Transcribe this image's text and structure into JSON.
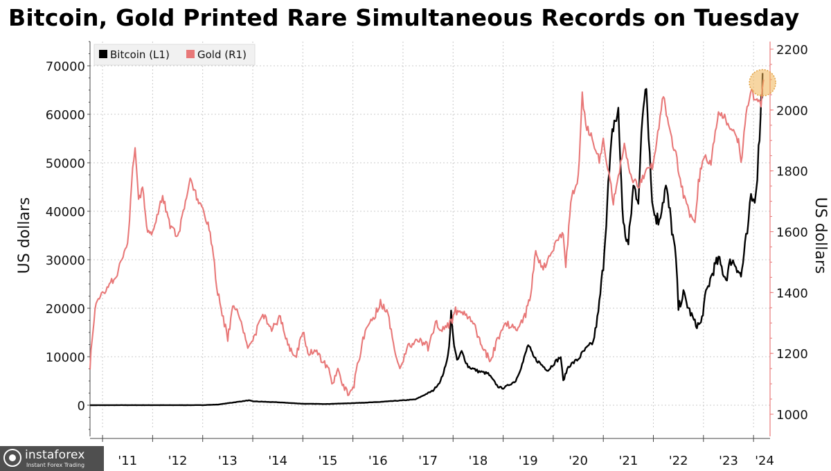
{
  "chart_data": {
    "type": "line",
    "title": "Bitcoin, Gold Printed Rare Simultaneous Records on Tuesday",
    "ylabel_left": "US dollars",
    "ylabel_right": "US dollars",
    "xlabel": "",
    "x_ticks": [
      "'11",
      "'12",
      "'13",
      "'14",
      "'15",
      "'16",
      "'17",
      "'18",
      "'19",
      "'20",
      "'21",
      "'22",
      "'23",
      "'24"
    ],
    "x_range": [
      2010.75,
      2024.33
    ],
    "y_left": {
      "min": -5000,
      "max": 75000,
      "ticks": [
        0,
        10000,
        20000,
        30000,
        40000,
        50000,
        60000,
        70000
      ]
    },
    "y_right": {
      "min": 950,
      "max": 2225,
      "ticks": [
        1000,
        1200,
        1400,
        1600,
        1800,
        2000,
        2200
      ]
    },
    "grid": true,
    "legend_position": "top-left",
    "series": [
      {
        "name": "Bitcoin (L1)",
        "axis": "left",
        "color": "#000000",
        "points": [
          [
            2010.75,
            0
          ],
          [
            2011.5,
            15
          ],
          [
            2012.5,
            12
          ],
          [
            2013.0,
            20
          ],
          [
            2013.3,
            130
          ],
          [
            2013.92,
            1000
          ],
          [
            2014.0,
            800
          ],
          [
            2014.5,
            600
          ],
          [
            2015.0,
            300
          ],
          [
            2015.5,
            250
          ],
          [
            2016.0,
            430
          ],
          [
            2016.5,
            650
          ],
          [
            2017.0,
            1000
          ],
          [
            2017.25,
            1200
          ],
          [
            2017.5,
            2500
          ],
          [
            2017.6,
            3000
          ],
          [
            2017.75,
            5000
          ],
          [
            2017.85,
            8000
          ],
          [
            2017.92,
            12000
          ],
          [
            2017.96,
            19000
          ],
          [
            2018.0,
            14000
          ],
          [
            2018.08,
            9000
          ],
          [
            2018.17,
            11000
          ],
          [
            2018.3,
            8000
          ],
          [
            2018.5,
            7000
          ],
          [
            2018.7,
            6500
          ],
          [
            2018.9,
            3800
          ],
          [
            2019.0,
            3500
          ],
          [
            2019.25,
            5000
          ],
          [
            2019.4,
            9000
          ],
          [
            2019.5,
            12500
          ],
          [
            2019.6,
            10000
          ],
          [
            2019.8,
            8000
          ],
          [
            2019.9,
            7200
          ],
          [
            2020.0,
            8500
          ],
          [
            2020.15,
            10000
          ],
          [
            2020.2,
            5000
          ],
          [
            2020.3,
            8000
          ],
          [
            2020.5,
            9500
          ],
          [
            2020.6,
            11000
          ],
          [
            2020.8,
            13000
          ],
          [
            2020.9,
            19000
          ],
          [
            2021.0,
            29000
          ],
          [
            2021.1,
            45000
          ],
          [
            2021.2,
            58000
          ],
          [
            2021.3,
            60000
          ],
          [
            2021.4,
            37000
          ],
          [
            2021.5,
            33000
          ],
          [
            2021.6,
            45000
          ],
          [
            2021.7,
            43000
          ],
          [
            2021.8,
            62000
          ],
          [
            2021.86,
            67500
          ],
          [
            2021.95,
            47000
          ],
          [
            2022.0,
            40000
          ],
          [
            2022.1,
            38000
          ],
          [
            2022.25,
            45000
          ],
          [
            2022.35,
            38000
          ],
          [
            2022.45,
            30000
          ],
          [
            2022.5,
            20000
          ],
          [
            2022.6,
            23000
          ],
          [
            2022.7,
            20000
          ],
          [
            2022.85,
            16500
          ],
          [
            2022.95,
            16800
          ],
          [
            2023.05,
            23000
          ],
          [
            2023.2,
            28000
          ],
          [
            2023.3,
            30000
          ],
          [
            2023.45,
            26000
          ],
          [
            2023.55,
            30000
          ],
          [
            2023.65,
            29000
          ],
          [
            2023.75,
            26500
          ],
          [
            2023.85,
            34000
          ],
          [
            2023.9,
            37000
          ],
          [
            2023.95,
            43000
          ],
          [
            2024.0,
            42000
          ],
          [
            2024.05,
            45000
          ],
          [
            2024.1,
            52000
          ],
          [
            2024.14,
            61000
          ],
          [
            2024.17,
            65000
          ],
          [
            2024.18,
            68500
          ]
        ]
      },
      {
        "name": "Gold (R1)",
        "axis": "right",
        "color": "#e87878",
        "points": [
          [
            2010.75,
            1160
          ],
          [
            2010.85,
            1350
          ],
          [
            2011.0,
            1400
          ],
          [
            2011.25,
            1450
          ],
          [
            2011.5,
            1550
          ],
          [
            2011.6,
            1800
          ],
          [
            2011.65,
            1880
          ],
          [
            2011.72,
            1700
          ],
          [
            2011.8,
            1750
          ],
          [
            2011.9,
            1600
          ],
          [
            2012.0,
            1600
          ],
          [
            2012.2,
            1720
          ],
          [
            2012.35,
            1620
          ],
          [
            2012.5,
            1580
          ],
          [
            2012.7,
            1720
          ],
          [
            2012.75,
            1780
          ],
          [
            2012.9,
            1700
          ],
          [
            2013.0,
            1670
          ],
          [
            2013.15,
            1600
          ],
          [
            2013.3,
            1400
          ],
          [
            2013.5,
            1250
          ],
          [
            2013.6,
            1350
          ],
          [
            2013.75,
            1320
          ],
          [
            2013.9,
            1220
          ],
          [
            2014.0,
            1240
          ],
          [
            2014.2,
            1330
          ],
          [
            2014.4,
            1280
          ],
          [
            2014.55,
            1320
          ],
          [
            2014.7,
            1230
          ],
          [
            2014.85,
            1180
          ],
          [
            2015.0,
            1280
          ],
          [
            2015.1,
            1200
          ],
          [
            2015.3,
            1200
          ],
          [
            2015.5,
            1150
          ],
          [
            2015.6,
            1100
          ],
          [
            2015.7,
            1140
          ],
          [
            2015.9,
            1060
          ],
          [
            2016.0,
            1080
          ],
          [
            2016.2,
            1250
          ],
          [
            2016.45,
            1330
          ],
          [
            2016.55,
            1370
          ],
          [
            2016.7,
            1330
          ],
          [
            2016.85,
            1200
          ],
          [
            2016.96,
            1150
          ],
          [
            2017.1,
            1220
          ],
          [
            2017.3,
            1250
          ],
          [
            2017.5,
            1220
          ],
          [
            2017.65,
            1300
          ],
          [
            2017.8,
            1280
          ],
          [
            2017.96,
            1300
          ],
          [
            2018.05,
            1340
          ],
          [
            2018.2,
            1330
          ],
          [
            2018.4,
            1310
          ],
          [
            2018.55,
            1230
          ],
          [
            2018.65,
            1200
          ],
          [
            2018.75,
            1180
          ],
          [
            2018.9,
            1250
          ],
          [
            2019.05,
            1300
          ],
          [
            2019.3,
            1280
          ],
          [
            2019.45,
            1330
          ],
          [
            2019.55,
            1400
          ],
          [
            2019.65,
            1530
          ],
          [
            2019.8,
            1480
          ],
          [
            2019.96,
            1520
          ],
          [
            2020.1,
            1580
          ],
          [
            2020.2,
            1600
          ],
          [
            2020.25,
            1480
          ],
          [
            2020.35,
            1700
          ],
          [
            2020.5,
            1780
          ],
          [
            2020.58,
            2050
          ],
          [
            2020.65,
            1950
          ],
          [
            2020.8,
            1900
          ],
          [
            2020.92,
            1830
          ],
          [
            2021.0,
            1900
          ],
          [
            2021.2,
            1700
          ],
          [
            2021.3,
            1780
          ],
          [
            2021.42,
            1880
          ],
          [
            2021.55,
            1780
          ],
          [
            2021.7,
            1750
          ],
          [
            2021.85,
            1800
          ],
          [
            2022.0,
            1820
          ],
          [
            2022.2,
            2050
          ],
          [
            2022.3,
            1950
          ],
          [
            2022.45,
            1850
          ],
          [
            2022.6,
            1720
          ],
          [
            2022.75,
            1650
          ],
          [
            2022.83,
            1640
          ],
          [
            2022.9,
            1760
          ],
          [
            2023.0,
            1850
          ],
          [
            2023.15,
            1830
          ],
          [
            2023.3,
            2000
          ],
          [
            2023.4,
            1980
          ],
          [
            2023.6,
            1930
          ],
          [
            2023.7,
            1900
          ],
          [
            2023.75,
            1820
          ],
          [
            2023.85,
            1990
          ],
          [
            2023.96,
            2060
          ],
          [
            2024.05,
            2030
          ],
          [
            2024.15,
            2020
          ],
          [
            2024.2,
            2100
          ]
        ]
      }
    ],
    "annotations": [
      {
        "type": "circle-highlight",
        "x": 2024.18,
        "y_left": 68500,
        "color": "#f0b456"
      }
    ]
  },
  "colors": {
    "gridline": "#c8c8c8",
    "axis": "#444444",
    "background": "#ffffff"
  },
  "watermark": {
    "name": "instaforex",
    "tagline": "Instant Forex Trading",
    "background": "#4f4f4f"
  }
}
